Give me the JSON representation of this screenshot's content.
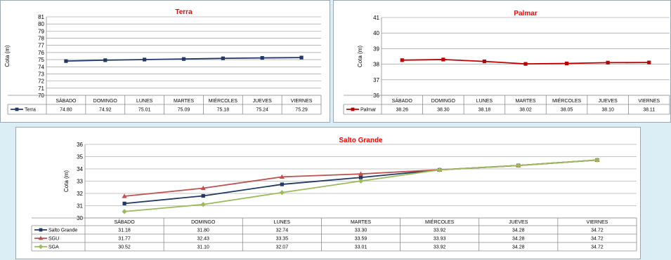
{
  "chart_data": [
    {
      "type": "line",
      "title": "Terra",
      "ylabel": "Cota (m)",
      "ylim": [
        70,
        81
      ],
      "yticks": [
        70,
        71,
        72,
        73,
        74,
        75,
        76,
        77,
        78,
        79,
        80,
        81
      ],
      "categories": [
        "SÁBADO",
        "DOMINGO",
        "LUNES",
        "MARTES",
        "MIÉRCOLES",
        "JUEVES",
        "VIERNES"
      ],
      "series": [
        {
          "name": "Terra",
          "color": "#1f3864",
          "marker": "square",
          "values": [
            74.8,
            74.92,
            75.01,
            75.09,
            75.18,
            75.24,
            75.29
          ],
          "labels": [
            "74.80",
            "74.92",
            "75.01",
            "75.09",
            "75.18",
            "75.24",
            "75.29"
          ]
        }
      ],
      "grid": true,
      "legend": "data-table"
    },
    {
      "type": "line",
      "title": "Palmar",
      "ylabel": "Cota (m)",
      "ylim": [
        36,
        41
      ],
      "yticks": [
        36,
        37,
        38,
        39,
        40,
        41
      ],
      "categories": [
        "SÁBADO",
        "DOMINGO",
        "LUNES",
        "MARTES",
        "MIÉRCOLES",
        "JUEVES",
        "VIERNES"
      ],
      "series": [
        {
          "name": "Palmar",
          "color": "#c00000",
          "marker": "square",
          "values": [
            38.26,
            38.3,
            38.18,
            38.02,
            38.05,
            38.1,
            38.11
          ],
          "labels": [
            "38.26",
            "38.30",
            "38.18",
            "38.02",
            "38.05",
            "38.10",
            "38.11"
          ]
        }
      ],
      "grid": true,
      "legend": "data-table"
    },
    {
      "type": "line",
      "title": "Salto Grande",
      "ylabel": "Cota (m)",
      "ylim": [
        30,
        36
      ],
      "yticks": [
        30,
        31,
        32,
        33,
        34,
        35,
        36
      ],
      "categories": [
        "SÁBADO",
        "DOMINGO",
        "LUNES",
        "MARTES",
        "MIÉRCOLES",
        "JUEVES",
        "VIERNES"
      ],
      "series": [
        {
          "name": "Salto Grande",
          "color": "#1f3864",
          "marker": "square",
          "values": [
            31.18,
            31.8,
            32.74,
            33.3,
            33.92,
            34.28,
            34.72
          ],
          "labels": [
            "31.18",
            "31.80",
            "32.74",
            "33.30",
            "33.92",
            "34.28",
            "34.72"
          ]
        },
        {
          "name": "SGU",
          "color": "#c0504d",
          "marker": "triangle",
          "values": [
            31.77,
            32.43,
            33.35,
            33.59,
            33.93,
            34.28,
            34.72
          ],
          "labels": [
            "31.77",
            "32.43",
            "33.35",
            "33.59",
            "33.93",
            "34.28",
            "34.72"
          ]
        },
        {
          "name": "SGA",
          "color": "#9bbb59",
          "marker": "diamond",
          "values": [
            30.52,
            31.1,
            32.07,
            33.01,
            33.92,
            34.28,
            34.72
          ],
          "labels": [
            "30.52",
            "31.10",
            "32.07",
            "33.01",
            "33.92",
            "34.28",
            "34.72"
          ]
        }
      ],
      "grid": true,
      "legend": "data-table"
    }
  ]
}
